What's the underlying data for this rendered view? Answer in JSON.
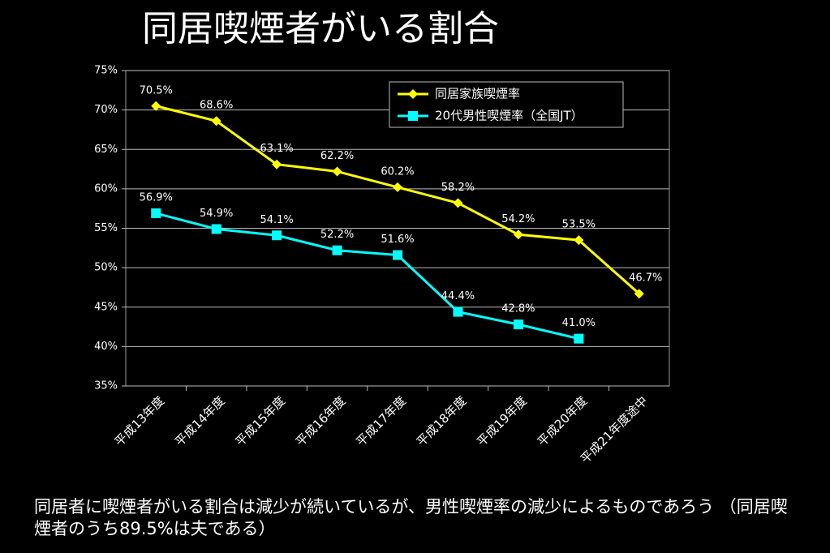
{
  "chart_data": {
    "type": "line",
    "title": "同居喫煙者がいる割合",
    "categories": [
      "平成13年度",
      "平成14年度",
      "平成15年度",
      "平成16年度",
      "平成17年度",
      "平成18年度",
      "平成19年度",
      "平成20年度",
      "平成21年度途中"
    ],
    "series": [
      {
        "name": "同居家族喫煙率",
        "color": "#ffff00",
        "marker": "diamond",
        "values": [
          70.5,
          68.6,
          63.1,
          62.2,
          60.2,
          58.2,
          54.2,
          53.5,
          46.7
        ],
        "value_labels": [
          "70.5%",
          "68.6%",
          "63.1%",
          "62.2%",
          "60.2%",
          "58.2%",
          "54.2%",
          "53.5%",
          "46.7%"
        ]
      },
      {
        "name": "20代男性喫煙率（全国JT）",
        "color": "#00ffff",
        "marker": "square",
        "values": [
          56.9,
          54.9,
          54.1,
          52.2,
          51.6,
          44.4,
          42.8,
          41.0,
          null
        ],
        "value_labels": [
          "56.9%",
          "54.9%",
          "54.1%",
          "52.2%",
          "51.6%",
          "44.4%",
          "42.8%",
          "41.0%",
          null
        ]
      }
    ],
    "ylim": [
      35,
      75
    ],
    "yticks": [
      {
        "value": 35,
        "label": "35%"
      },
      {
        "value": 40,
        "label": "40%"
      },
      {
        "value": 45,
        "label": "45%"
      },
      {
        "value": 50,
        "label": "50%"
      },
      {
        "value": 55,
        "label": "55%"
      },
      {
        "value": 60,
        "label": "60%"
      },
      {
        "value": 65,
        "label": "65%"
      },
      {
        "value": 70,
        "label": "70%"
      },
      {
        "value": 75,
        "label": "75%"
      }
    ],
    "grid": true,
    "legend": "upper-right",
    "note": "同居者に喫煙者がいる割合は減少が続いているが、男性喫煙率の減少によるものであろう （同居喫煙者のうち89.5%は夫である）"
  }
}
